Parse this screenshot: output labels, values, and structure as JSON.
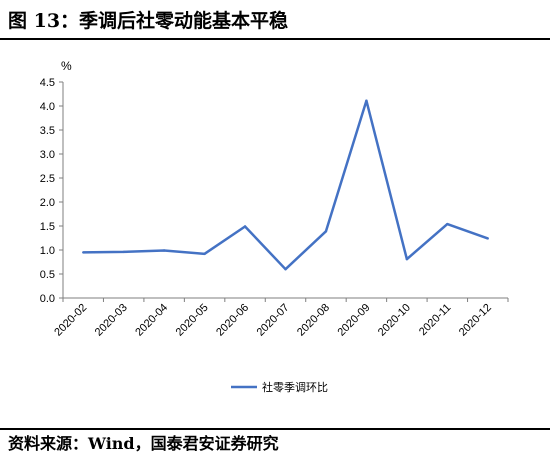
{
  "title": "图 13：季调后社零动能基本平稳",
  "source": "资料来源：Wind，国泰君安证券研究",
  "chart_data": {
    "type": "line",
    "title": "",
    "xlabel": "",
    "ylabel": "%",
    "ylim": [
      0,
      4.5
    ],
    "yticks": [
      "4.5",
      "4.0",
      "3.5",
      "3.0",
      "2.5",
      "2.0",
      "1.5",
      "1.0",
      "0.5",
      "0.0"
    ],
    "categories": [
      "2020-02",
      "2020-03",
      "2020-04",
      "2020-05",
      "2020-06",
      "2020-07",
      "2020-08",
      "2020-09",
      "2020-10",
      "2020-11",
      "2020-12"
    ],
    "series": [
      {
        "name": "社零季调环比",
        "color": "#4472C4",
        "values": [
          0.95,
          0.96,
          0.99,
          0.92,
          1.49,
          0.6,
          1.39,
          4.11,
          0.81,
          1.54,
          1.24
        ]
      }
    ],
    "grid": false,
    "legend": "bottom"
  }
}
